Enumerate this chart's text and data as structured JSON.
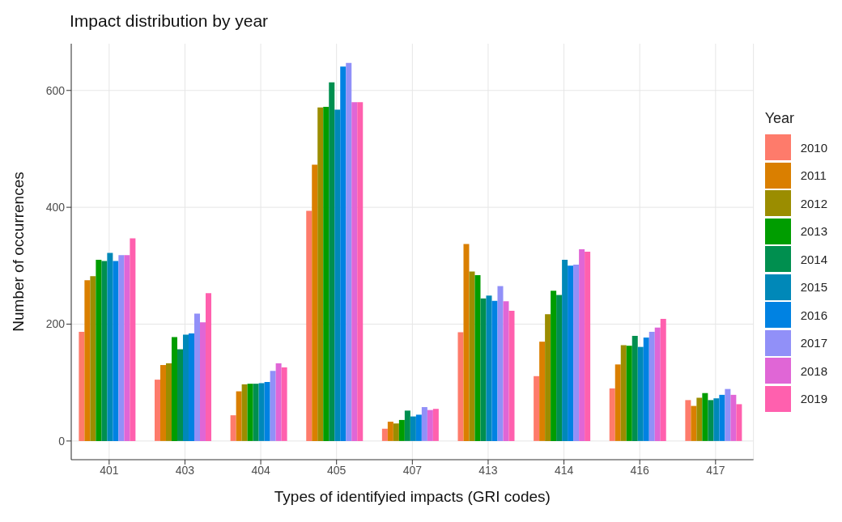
{
  "chart_data": {
    "type": "bar",
    "title": "Impact distribution by year",
    "xlabel": "Types of identifyied impacts (GRI codes)",
    "ylabel": "Number of occurrences",
    "legend_title": "Year",
    "legend": "right",
    "grid": true,
    "categories": [
      "401",
      "403",
      "404",
      "405",
      "407",
      "413",
      "414",
      "416",
      "417"
    ],
    "ylim": [
      -32,
      680
    ],
    "yticks": [
      0,
      200,
      400,
      600
    ],
    "series": [
      {
        "name": "2010",
        "color": "#fe7b6b",
        "values": [
          187,
          105,
          44,
          394,
          21,
          186,
          111,
          90,
          70
        ]
      },
      {
        "name": "2011",
        "color": "#da7f00",
        "values": [
          275,
          130,
          85,
          473,
          33,
          337,
          170,
          131,
          60
        ]
      },
      {
        "name": "2012",
        "color": "#9b8d00",
        "values": [
          282,
          133,
          97,
          571,
          30,
          290,
          217,
          164,
          74
        ]
      },
      {
        "name": "2013",
        "color": "#009d00",
        "values": [
          310,
          178,
          98,
          572,
          36,
          284,
          257,
          163,
          82
        ]
      },
      {
        "name": "2014",
        "color": "#008f4f",
        "values": [
          308,
          157,
          98,
          614,
          52,
          244,
          250,
          180,
          70
        ]
      },
      {
        "name": "2015",
        "color": "#0088b8",
        "values": [
          322,
          182,
          99,
          567,
          42,
          249,
          310,
          161,
          73
        ]
      },
      {
        "name": "2016",
        "color": "#0082e2",
        "values": [
          308,
          184,
          101,
          641,
          45,
          240,
          300,
          177,
          79
        ]
      },
      {
        "name": "2017",
        "color": "#9190f8",
        "values": [
          318,
          218,
          120,
          647,
          58,
          265,
          302,
          187,
          89
        ]
      },
      {
        "name": "2018",
        "color": "#e066d6",
        "values": [
          318,
          203,
          133,
          580,
          53,
          239,
          328,
          194,
          79
        ]
      },
      {
        "name": "2019",
        "color": "#ff60ae",
        "values": [
          347,
          253,
          126,
          580,
          55,
          223,
          324,
          209,
          63
        ]
      }
    ]
  }
}
